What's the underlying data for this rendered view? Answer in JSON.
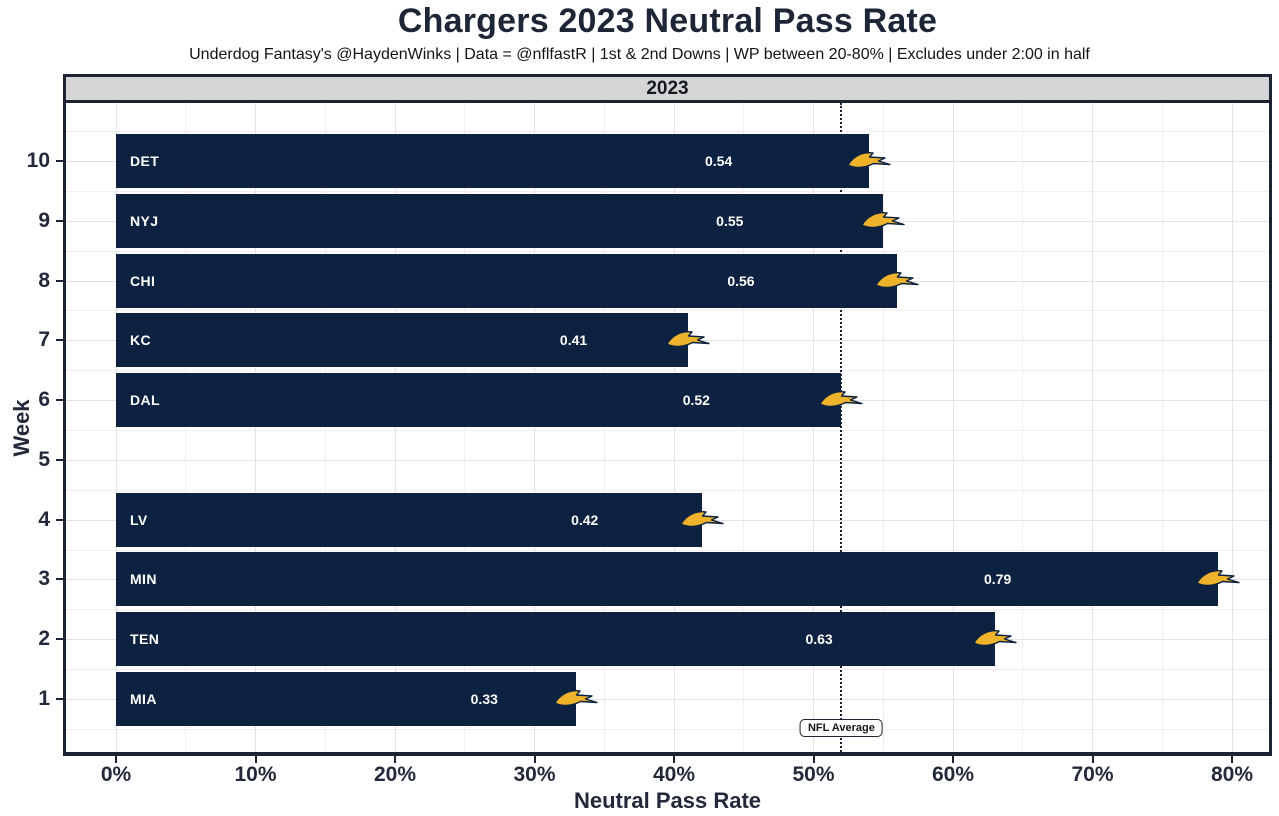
{
  "header": {
    "title": "Chargers 2023 Neutral Pass Rate",
    "subtitle": "Underdog Fantasy's @HaydenWinks | Data = @nflfastR | 1st & 2nd Downs | WP between 20-80% | Excludes under 2:00 in half"
  },
  "facet": {
    "label": "2023"
  },
  "chart_data": {
    "type": "bar",
    "orientation": "horizontal",
    "title": "Chargers 2023 Neutral Pass Rate",
    "xlabel": "Neutral Pass Rate",
    "ylabel": "Week",
    "x_tick_labels": [
      "0%",
      "10%",
      "20%",
      "30%",
      "40%",
      "50%",
      "60%",
      "70%",
      "80%"
    ],
    "x_tick_values": [
      0,
      0.1,
      0.2,
      0.3,
      0.4,
      0.5,
      0.6,
      0.7,
      0.8
    ],
    "xlim": [
      -0.038,
      0.829
    ],
    "grid": {
      "major": true,
      "minor": true
    },
    "legend_position": "none",
    "bars": [
      {
        "week": 10,
        "opponent": "DET",
        "value": 0.54
      },
      {
        "week": 9,
        "opponent": "NYJ",
        "value": 0.55
      },
      {
        "week": 8,
        "opponent": "CHI",
        "value": 0.56
      },
      {
        "week": 7,
        "opponent": "KC",
        "value": 0.41
      },
      {
        "week": 6,
        "opponent": "DAL",
        "value": 0.52
      },
      {
        "week": 5,
        "opponent": null,
        "value": null
      },
      {
        "week": 4,
        "opponent": "LV",
        "value": 0.42
      },
      {
        "week": 3,
        "opponent": "MIN",
        "value": 0.79
      },
      {
        "week": 2,
        "opponent": "TEN",
        "value": 0.63
      },
      {
        "week": 1,
        "opponent": "MIA",
        "value": 0.33
      }
    ],
    "reference_line": {
      "value": 0.52,
      "label": "NFL Average",
      "style": "dotted"
    },
    "bar_end_icon": "chargers-bolt-icon"
  },
  "colors": {
    "bar": "#0c2240",
    "bar_label_text": "#ffffff",
    "title_text": "#1d2636",
    "subtitle_text": "#141414",
    "axis_text": "#23293a",
    "strip_background": "#d5d5d5",
    "strip_text": "#14181f",
    "border": "#1c2433",
    "grid_major": "#e3e3e3",
    "grid_minor": "#efefef",
    "bolt_gold": "#eeb22b",
    "reference_line": "#1a2230",
    "panel_background": "#ffffff"
  }
}
